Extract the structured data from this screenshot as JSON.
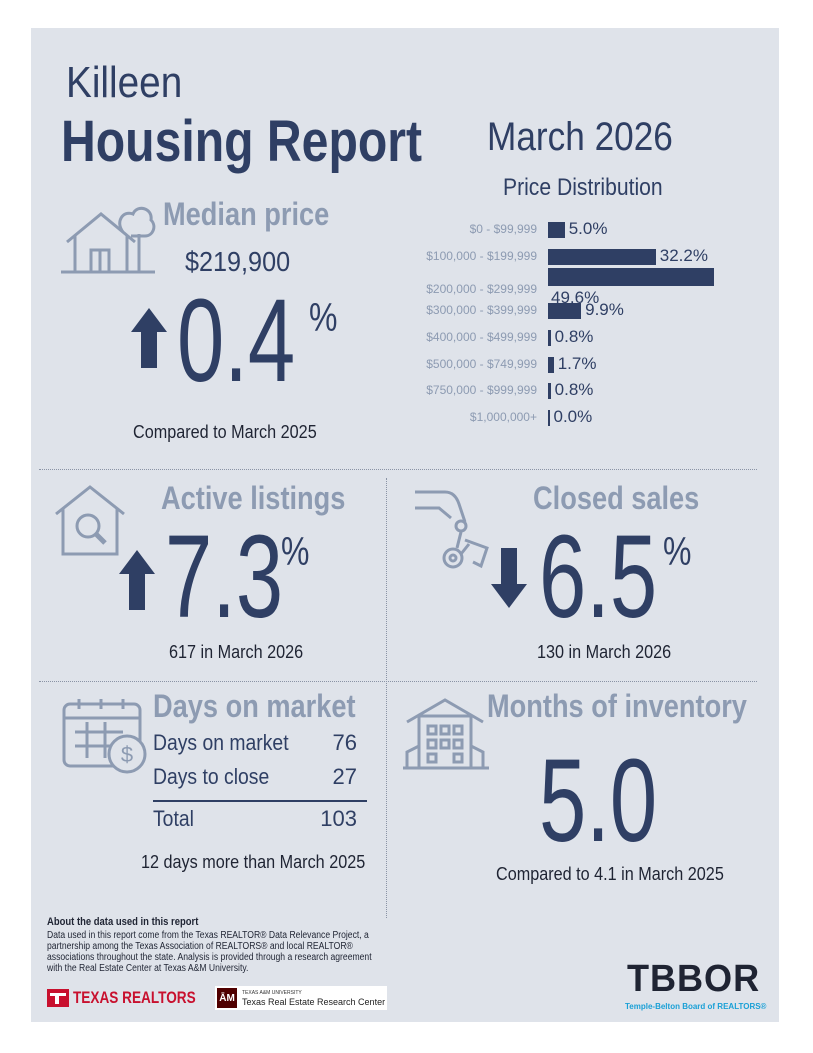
{
  "header": {
    "city": "Killeen",
    "title": "Housing Report",
    "period": "March 2026"
  },
  "median_price": {
    "label": "Median price",
    "value": "$219,900",
    "change": "0.4",
    "percent": "%",
    "direction": "up",
    "comparison": "Compared to March 2025"
  },
  "price_distribution": {
    "title": "Price Distribution",
    "chart_data": {
      "type": "bar",
      "title": "Price Distribution",
      "categories": [
        "$0 - $99,999",
        "$100,000 - $199,999",
        "$200,000 - $299,999",
        "$300,000 - $399,999",
        "$400,000 - $499,999",
        "$500,000 - $749,999",
        "$750,000 - $999,999",
        "$1,000,000+"
      ],
      "values": [
        5.0,
        32.2,
        49.6,
        9.9,
        0.8,
        1.7,
        0.8,
        0.0
      ],
      "value_labels": [
        "5.0%",
        "32.2%",
        "49.6%",
        "9.9%",
        "0.8%",
        "1.7%",
        "0.8%",
        "0.0%"
      ],
      "orientation": "horizontal",
      "xlim": [
        0,
        49.6
      ]
    }
  },
  "active_listings": {
    "label": "Active listings",
    "change": "7.3",
    "percent": "%",
    "direction": "up",
    "detail": "617 in March 2026"
  },
  "closed_sales": {
    "label": "Closed sales",
    "change": "6.5",
    "percent": "%",
    "direction": "down",
    "detail": "130 in March 2026"
  },
  "days_on_market": {
    "label": "Days on market",
    "rows": [
      {
        "label": "Days on market",
        "value": "76"
      },
      {
        "label": "Days to close",
        "value": "27"
      }
    ],
    "total_label": "Total",
    "total_value": "103",
    "comparison": "12 days more than March 2025"
  },
  "months_inventory": {
    "label": "Months of inventory",
    "value": "5.0",
    "comparison": "Compared to 4.1 in March 2025"
  },
  "footer": {
    "about_title": "About the data used in this report",
    "about_text": "Data used in this report come from the Texas REALTOR® Data Relevance Project, a partnership among the Texas Association of REALTORS® and local REALTOR® associations throughout the state. Analysis is provided through a research agreement with the Real Estate Center at Texas A&M University.",
    "texas_realtors": "TEXAS REALTORS",
    "tamu_small": "TEXAS A&M UNIVERSITY",
    "tamu_center": "Texas Real Estate Research Center",
    "tbbor_logo": "TBBOR",
    "tbbor_sub": "Temple-Belton Board of REALTORS®"
  },
  "colors": {
    "navy": "#2f3f64",
    "muted": "#8d9bb2",
    "panel": "#dfe3ea",
    "red": "#c8102e",
    "maroon": "#500000",
    "teal": "#1aa0d6"
  },
  "icons": [
    "house-tree-icon",
    "house-search-icon",
    "hand-keys-icon",
    "calendar-dollar-icon",
    "apartment-building-icon",
    "arrow-up-icon",
    "arrow-down-icon"
  ]
}
